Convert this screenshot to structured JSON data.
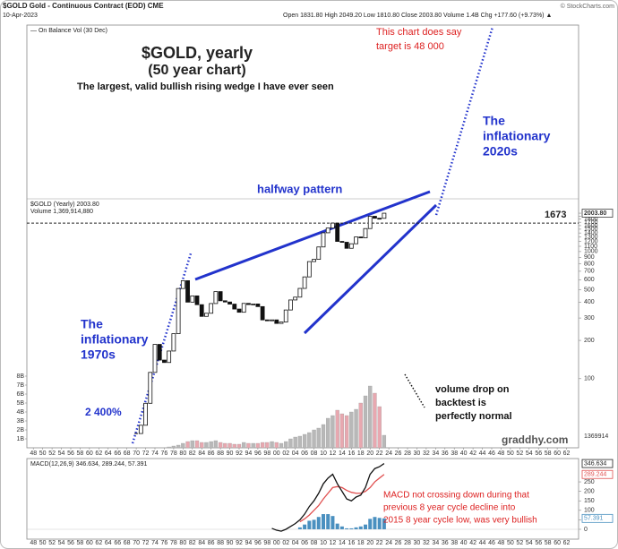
{
  "chart_data": {
    "type": "candlestick",
    "header": [
      "$GOLD Gold - Continuous Contract (EOD) CME",
      "10-Apr-2023",
      "Open 1831.80 High 2049.20 Low 1810.80 Close 2003.80 Volume 1.4B Chg +177.60 (+9.73%) ▲",
      "© StockCharts.com",
      "— On Balance Vol (30 Dec)",
      "$GOLD (Yearly) 2003.80",
      "Volume 1,369,914,880",
      "1369914",
      "MACD(12,26,9) 346.634, 289.244, 57.391"
    ],
    "title": "$GOLD, yearly",
    "subtitle": "(50 year chart)",
    "annotations": [
      "The largest, valid bullish rising wedge I have ever seen",
      "This chart does say",
      "target is 48 000",
      "The",
      "inflationary",
      "2020s",
      "halfway pattern",
      "The",
      "inflationary",
      "1970s",
      "2 400%",
      "volume drop on",
      "backtest is",
      "perfectly normal",
      "graddhy.com",
      "MACD not crossing down during that",
      "previous 8 year cycle decline into",
      "2015 8 year cycle low, was very bullish"
    ],
    "x": [
      1970,
      1971,
      1972,
      1973,
      1974,
      1975,
      1976,
      1977,
      1978,
      1979,
      1980,
      1981,
      1982,
      1983,
      1984,
      1985,
      1986,
      1987,
      1988,
      1989,
      1990,
      1991,
      1992,
      1993,
      1994,
      1995,
      1996,
      1997,
      1998,
      1999,
      2000,
      2001,
      2002,
      2003,
      2004,
      2005,
      2006,
      2007,
      2008,
      2009,
      2010,
      2011,
      2012,
      2013,
      2014,
      2015,
      2016,
      2017,
      2018,
      2019,
      2020,
      2021,
      2022,
      2023
    ],
    "close": [
      37,
      43,
      64,
      112,
      186,
      140,
      134,
      165,
      226,
      512,
      590,
      400,
      448,
      382,
      309,
      327,
      390,
      484,
      410,
      401,
      386,
      353,
      333,
      391,
      383,
      387,
      369,
      290,
      288,
      290,
      272,
      279,
      347,
      416,
      438,
      513,
      632,
      834,
      869,
      1087,
      1405,
      1531,
      1675,
      1202,
      1184,
      1061,
      1152,
      1303,
      1282,
      1517,
      1895,
      1829,
      1826,
      2003.8
    ],
    "volume": [
      null,
      null,
      null,
      null,
      null,
      null,
      null,
      0.1,
      0.2,
      0.3,
      0.5,
      0.7,
      0.8,
      0.8,
      0.6,
      0.6,
      0.7,
      0.8,
      0.6,
      0.5,
      0.5,
      0.4,
      0.4,
      0.6,
      0.5,
      0.5,
      0.5,
      0.6,
      0.6,
      0.7,
      0.6,
      0.5,
      0.7,
      1,
      1.2,
      1.3,
      1.5,
      1.7,
      2,
      2.2,
      2.6,
      3.3,
      3.6,
      4.2,
      3.8,
      3.6,
      4,
      4.3,
      5,
      5.8,
      6.9,
      6.1,
      4.6,
      1.4
    ],
    "up_color": "#b8b8b8",
    "down_color": "#e8a8b0",
    "macd_line": [
      null,
      null,
      null,
      null,
      null,
      null,
      null,
      null,
      null,
      null,
      null,
      null,
      null,
      null,
      null,
      null,
      null,
      null,
      null,
      null,
      null,
      null,
      null,
      null,
      null,
      null,
      null,
      null,
      null,
      5,
      -5,
      -10,
      0,
      15,
      30,
      50,
      80,
      120,
      150,
      190,
      240,
      270,
      290,
      240,
      200,
      160,
      150,
      170,
      180,
      220,
      290,
      320,
      330,
      346.634
    ],
    "macd_signal": [
      null,
      null,
      null,
      null,
      null,
      null,
      null,
      null,
      null,
      null,
      null,
      null,
      null,
      null,
      null,
      null,
      null,
      null,
      null,
      null,
      null,
      null,
      null,
      null,
      null,
      null,
      null,
      null,
      null,
      null,
      null,
      null,
      null,
      null,
      null,
      40,
      55,
      75,
      100,
      125,
      160,
      190,
      220,
      225,
      220,
      205,
      195,
      190,
      190,
      200,
      220,
      250,
      270,
      289.244
    ],
    "macd_hist": [
      null,
      null,
      null,
      null,
      null,
      null,
      null,
      null,
      null,
      null,
      null,
      null,
      null,
      null,
      null,
      null,
      null,
      null,
      null,
      null,
      null,
      null,
      null,
      null,
      null,
      null,
      null,
      null,
      null,
      null,
      null,
      null,
      null,
      null,
      null,
      10,
      25,
      45,
      50,
      65,
      80,
      80,
      70,
      30,
      15,
      5,
      5,
      10,
      15,
      25,
      55,
      65,
      60,
      57.391
    ],
    "macd_line_color": "#111111",
    "macd_signal_color": "#e05050",
    "macd_hist_color": "#4a90c0",
    "xlim": [
      1947,
      2064
    ],
    "xticks": [
      {
        "value": 1948,
        "label": "48"
      },
      {
        "value": 1950,
        "label": "50"
      },
      {
        "value": 1952,
        "label": "52"
      },
      {
        "value": 1954,
        "label": "54"
      },
      {
        "value": 1956,
        "label": "56"
      },
      {
        "value": 1958,
        "label": "58"
      },
      {
        "value": 1960,
        "label": "60"
      },
      {
        "value": 1962,
        "label": "62"
      },
      {
        "value": 1964,
        "label": "64"
      },
      {
        "value": 1966,
        "label": "66"
      },
      {
        "value": 1968,
        "label": "68"
      },
      {
        "value": 1970,
        "label": "70"
      },
      {
        "value": 1972,
        "label": "72"
      },
      {
        "value": 1974,
        "label": "74"
      },
      {
        "value": 1976,
        "label": "76"
      },
      {
        "value": 1978,
        "label": "78"
      },
      {
        "value": 1980,
        "label": "80"
      },
      {
        "value": 1982,
        "label": "82"
      },
      {
        "value": 1984,
        "label": "84"
      },
      {
        "value": 1986,
        "label": "86"
      },
      {
        "value": 1988,
        "label": "88"
      },
      {
        "value": 1990,
        "label": "90"
      },
      {
        "value": 1992,
        "label": "92"
      },
      {
        "value": 1994,
        "label": "94"
      },
      {
        "value": 1996,
        "label": "96"
      },
      {
        "value": 1998,
        "label": "98"
      },
      {
        "value": 2000,
        "label": "00"
      },
      {
        "value": 2002,
        "label": "02"
      },
      {
        "value": 2004,
        "label": "04"
      },
      {
        "value": 2006,
        "label": "06"
      },
      {
        "value": 2008,
        "label": "08"
      },
      {
        "value": 2010,
        "label": "10"
      },
      {
        "value": 2012,
        "label": "12"
      },
      {
        "value": 2014,
        "label": "14"
      },
      {
        "value": 2016,
        "label": "16"
      },
      {
        "value": 2018,
        "label": "18"
      },
      {
        "value": 2020,
        "label": "20"
      },
      {
        "value": 2022,
        "label": "22"
      },
      {
        "value": 2024,
        "label": "24"
      },
      {
        "value": 2026,
        "label": "26"
      },
      {
        "value": 2028,
        "label": "28"
      },
      {
        "value": 2030,
        "label": "30"
      },
      {
        "value": 2032,
        "label": "32"
      },
      {
        "value": 2034,
        "label": "34"
      },
      {
        "value": 2036,
        "label": "36"
      },
      {
        "value": 2038,
        "label": "38"
      },
      {
        "value": 2040,
        "label": "40"
      },
      {
        "value": 2042,
        "label": "42"
      },
      {
        "value": 2044,
        "label": "44"
      },
      {
        "value": 2046,
        "label": "46"
      },
      {
        "value": 2048,
        "label": "48"
      },
      {
        "value": 2050,
        "label": "50"
      },
      {
        "value": 2052,
        "label": "52"
      },
      {
        "value": 2054,
        "label": "54"
      },
      {
        "value": 2056,
        "label": "56"
      },
      {
        "value": 2058,
        "label": "58"
      },
      {
        "value": 2060,
        "label": "60"
      },
      {
        "value": 2062,
        "label": "62"
      }
    ],
    "ylim": [
      30,
      2600
    ],
    "log_scale": true,
    "yticks": [
      100,
      200,
      300,
      400,
      500,
      600,
      700,
      800,
      900,
      1000,
      1100,
      1200,
      1300,
      1400,
      1500,
      1600,
      1700,
      1800,
      1900,
      {
        "value": 2003.8,
        "label": "2003.80"
      }
    ],
    "level": 1673,
    "volume_ylim": [
      0,
      8
    ],
    "volume_yticks": [
      {
        "value": 1,
        "label": "1B"
      },
      {
        "value": 2,
        "label": "2B"
      },
      {
        "value": 3,
        "label": "3B"
      },
      {
        "value": 4,
        "label": "4B"
      },
      {
        "value": 5,
        "label": "5B"
      },
      {
        "value": 6,
        "label": "6B"
      },
      {
        "value": 7,
        "label": "7B"
      },
      {
        "value": 8,
        "label": "8B"
      }
    ],
    "macd_ylim": [
      -52,
      373
    ],
    "macd_yticks": [
      0,
      50,
      100,
      150,
      200,
      250
    ]
  }
}
